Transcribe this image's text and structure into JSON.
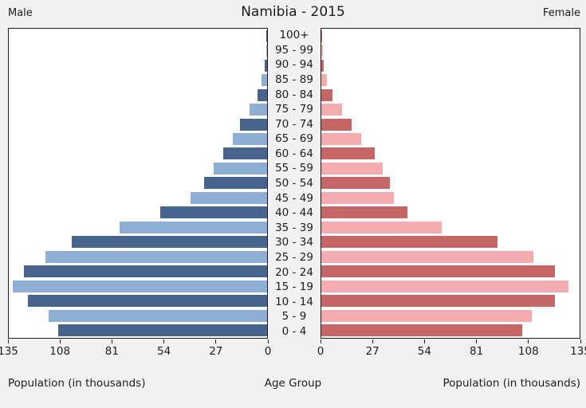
{
  "title": "Namibia - 2015",
  "labels": {
    "male": "Male",
    "female": "Female"
  },
  "axis": {
    "xlabel_left": "Population (in thousands)",
    "xlabel_center": "Age Group",
    "xlabel_right": "Population (in thousands)"
  },
  "colors": {
    "male_dark": "#46648C",
    "male_light": "#8FAED3",
    "female_dark": "#C56565",
    "female_light": "#F4ACB1",
    "plot_border": "#1b1b1b",
    "plot_bg": "#ffffff",
    "page_bg": "#f1f1f1"
  },
  "chart_data": {
    "type": "bar",
    "subtype": "population-pyramid",
    "title": "Namibia - 2015",
    "units": "thousands",
    "categories_order": "top-to-bottom",
    "categories": [
      "100+",
      "95 - 99",
      "90 - 94",
      "85 - 89",
      "80 - 84",
      "75 - 79",
      "70 - 74",
      "65 - 69",
      "60 - 64",
      "55 - 59",
      "50 - 54",
      "45 - 49",
      "40 - 44",
      "35 - 39",
      "30 - 34",
      "25 - 29",
      "20 - 24",
      "15 - 19",
      "10 - 14",
      "5 - 9",
      "0 - 4"
    ],
    "series": [
      {
        "name": "Male",
        "side": "left",
        "values": [
          0.3,
          0.6,
          1.2,
          3,
          5,
          9,
          14,
          18,
          23,
          28,
          33,
          40,
          56,
          77,
          102,
          116,
          127,
          133,
          125,
          114,
          109
        ]
      },
      {
        "name": "Female",
        "side": "right",
        "values": [
          0.3,
          0.7,
          1.3,
          3,
          6,
          11,
          16,
          21,
          28,
          32,
          36,
          38,
          45,
          63,
          92,
          111,
          122,
          129,
          122,
          110,
          105
        ]
      }
    ],
    "xlim": [
      0,
      135
    ],
    "xticks": [
      0,
      27,
      54,
      81,
      108,
      135
    ],
    "xticks_left_axis": [
      135,
      108,
      81,
      54,
      27,
      0
    ],
    "grid": false,
    "legend_position": "none"
  }
}
